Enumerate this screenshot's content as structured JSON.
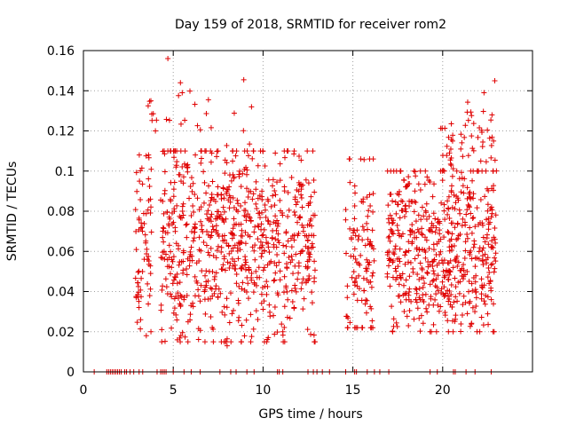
{
  "chart_data": {
    "type": "scatter",
    "title": "Day 159 of 2018, SRMTID for receiver rom2",
    "xlabel": "GPS time / hours",
    "ylabel": "SRMTID / TECUs",
    "xlim": [
      0,
      25
    ],
    "ylim": [
      0,
      0.16
    ],
    "xticks": [
      0,
      5,
      10,
      15,
      20
    ],
    "xtick_labels": [
      "0",
      "5",
      "10",
      "15",
      "20"
    ],
    "yticks": [
      0,
      0.02,
      0.04,
      0.06,
      0.08,
      0.1,
      0.12,
      0.14,
      0.16
    ],
    "ytick_labels": [
      "0",
      "0.02",
      "0.04",
      "0.06",
      "0.08",
      "0.1",
      "0.12",
      "0.14",
      "0.16"
    ],
    "grid": true,
    "marker": "plus",
    "color": "#e00000",
    "seed": 159,
    "series": [
      {
        "name": "SRMTID",
        "segments": [
          {
            "x_range": [
              2.9,
              3.8
            ],
            "count": 70,
            "y_range": [
              0.02,
              0.108
            ],
            "center": 0.065
          },
          {
            "x_range": [
              3.6,
              4.2
            ],
            "count": 8,
            "y_range": [
              0.12,
              0.14
            ],
            "center": 0.13
          },
          {
            "x_range": [
              4.3,
              12.9
            ],
            "count": 760,
            "y_range": [
              0.015,
              0.11
            ],
            "center": 0.065
          },
          {
            "x_range": [
              4.6,
              9.4
            ],
            "count": 22,
            "y_range": [
              0.11,
              0.146
            ],
            "center": 0.125
          },
          {
            "x_range": [
              14.6,
              16.2
            ],
            "count": 110,
            "y_range": [
              0.022,
              0.106
            ],
            "center": 0.058
          },
          {
            "x_range": [
              16.9,
              23.0
            ],
            "count": 560,
            "y_range": [
              0.02,
              0.1
            ],
            "center": 0.06
          },
          {
            "x_range": [
              19.8,
              23.0
            ],
            "count": 55,
            "y_range": [
              0.1,
              0.14
            ],
            "center": 0.115
          }
        ],
        "points": [
          {
            "x": 4.7,
            "y": 0.156
          },
          {
            "x": 5.4,
            "y": 0.144
          },
          {
            "x": 5.5,
            "y": 0.139
          },
          {
            "x": 22.9,
            "y": 0.145
          },
          {
            "x": 22.3,
            "y": 0.139
          },
          {
            "x": 8.0,
            "y": 0.013
          },
          {
            "x": 11.1,
            "y": 0.02
          },
          {
            "x": 3.5,
            "y": 0.018
          }
        ],
        "zero_x": [
          0.6,
          1.3,
          1.4,
          1.5,
          1.6,
          1.7,
          1.8,
          1.9,
          2.0,
          2.1,
          2.3,
          2.4,
          2.6,
          2.8,
          3.1,
          3.3,
          4.1,
          4.3,
          4.4,
          4.5,
          4.6,
          5.0,
          5.6,
          6.0,
          6.5,
          7.6,
          8.2,
          8.5,
          9.1,
          9.5,
          10.8,
          10.9,
          11.1,
          12.5,
          12.8,
          13.0,
          13.3,
          13.7,
          14.6,
          15.1,
          15.2,
          15.8,
          16.2,
          16.5,
          17.0,
          19.3,
          19.7,
          20.6,
          20.7,
          21.3,
          21.8,
          22.7
        ]
      }
    ]
  }
}
